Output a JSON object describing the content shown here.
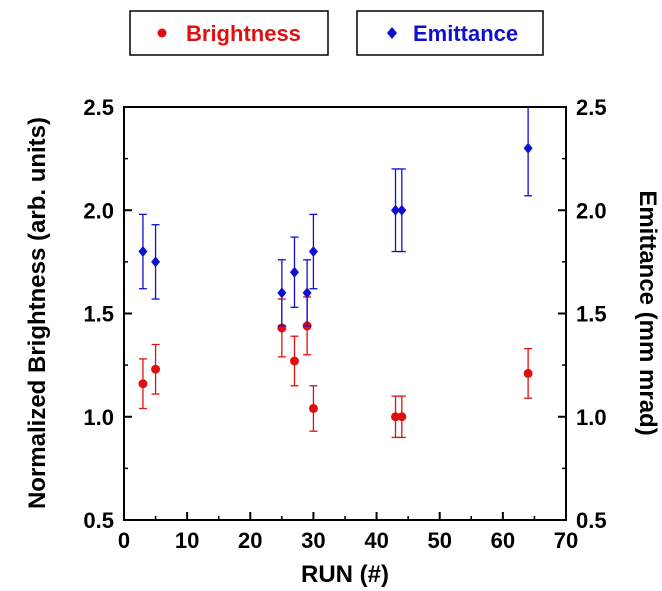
{
  "chart_data": {
    "type": "scatter",
    "xlabel": "RUN (#)",
    "ylabel_left": "Normalized Brightness (arb. units)",
    "ylabel_right": "Emittance (mm mrad)",
    "xlim": [
      0,
      70
    ],
    "ylim": [
      0.5,
      2.5
    ],
    "x_ticks": [
      "0",
      "10",
      "20",
      "30",
      "40",
      "50",
      "60",
      "70"
    ],
    "y_ticks": [
      "0.5",
      "1.0",
      "1.5",
      "2.0",
      "2.5"
    ],
    "legend_placement": "top",
    "series": [
      {
        "name": "Brightness",
        "marker": "circle",
        "color": "#e01010",
        "points": [
          {
            "x": 3,
            "y": 1.16,
            "err": 0.12
          },
          {
            "x": 5,
            "y": 1.23,
            "err": 0.12
          },
          {
            "x": 25,
            "y": 1.43,
            "err": 0.14
          },
          {
            "x": 27,
            "y": 1.27,
            "err": 0.12
          },
          {
            "x": 29,
            "y": 1.44,
            "err": 0.14
          },
          {
            "x": 30,
            "y": 1.04,
            "err": 0.11
          },
          {
            "x": 43,
            "y": 1.0,
            "err": 0.1
          },
          {
            "x": 44,
            "y": 1.0,
            "err": 0.1
          },
          {
            "x": 64,
            "y": 1.21,
            "err": 0.12
          }
        ]
      },
      {
        "name": "Emittance",
        "marker": "diamond",
        "color": "#1010d0",
        "points": [
          {
            "x": 3,
            "y": 1.8,
            "err": 0.18
          },
          {
            "x": 5,
            "y": 1.75,
            "err": 0.18
          },
          {
            "x": 25,
            "y": 1.6,
            "err": 0.16
          },
          {
            "x": 27,
            "y": 1.7,
            "err": 0.17
          },
          {
            "x": 29,
            "y": 1.6,
            "err": 0.16
          },
          {
            "x": 30,
            "y": 1.8,
            "err": 0.18
          },
          {
            "x": 43,
            "y": 2.0,
            "err": 0.2
          },
          {
            "x": 44,
            "y": 2.0,
            "err": 0.2
          },
          {
            "x": 64,
            "y": 2.3,
            "err": 0.23
          }
        ]
      }
    ]
  }
}
